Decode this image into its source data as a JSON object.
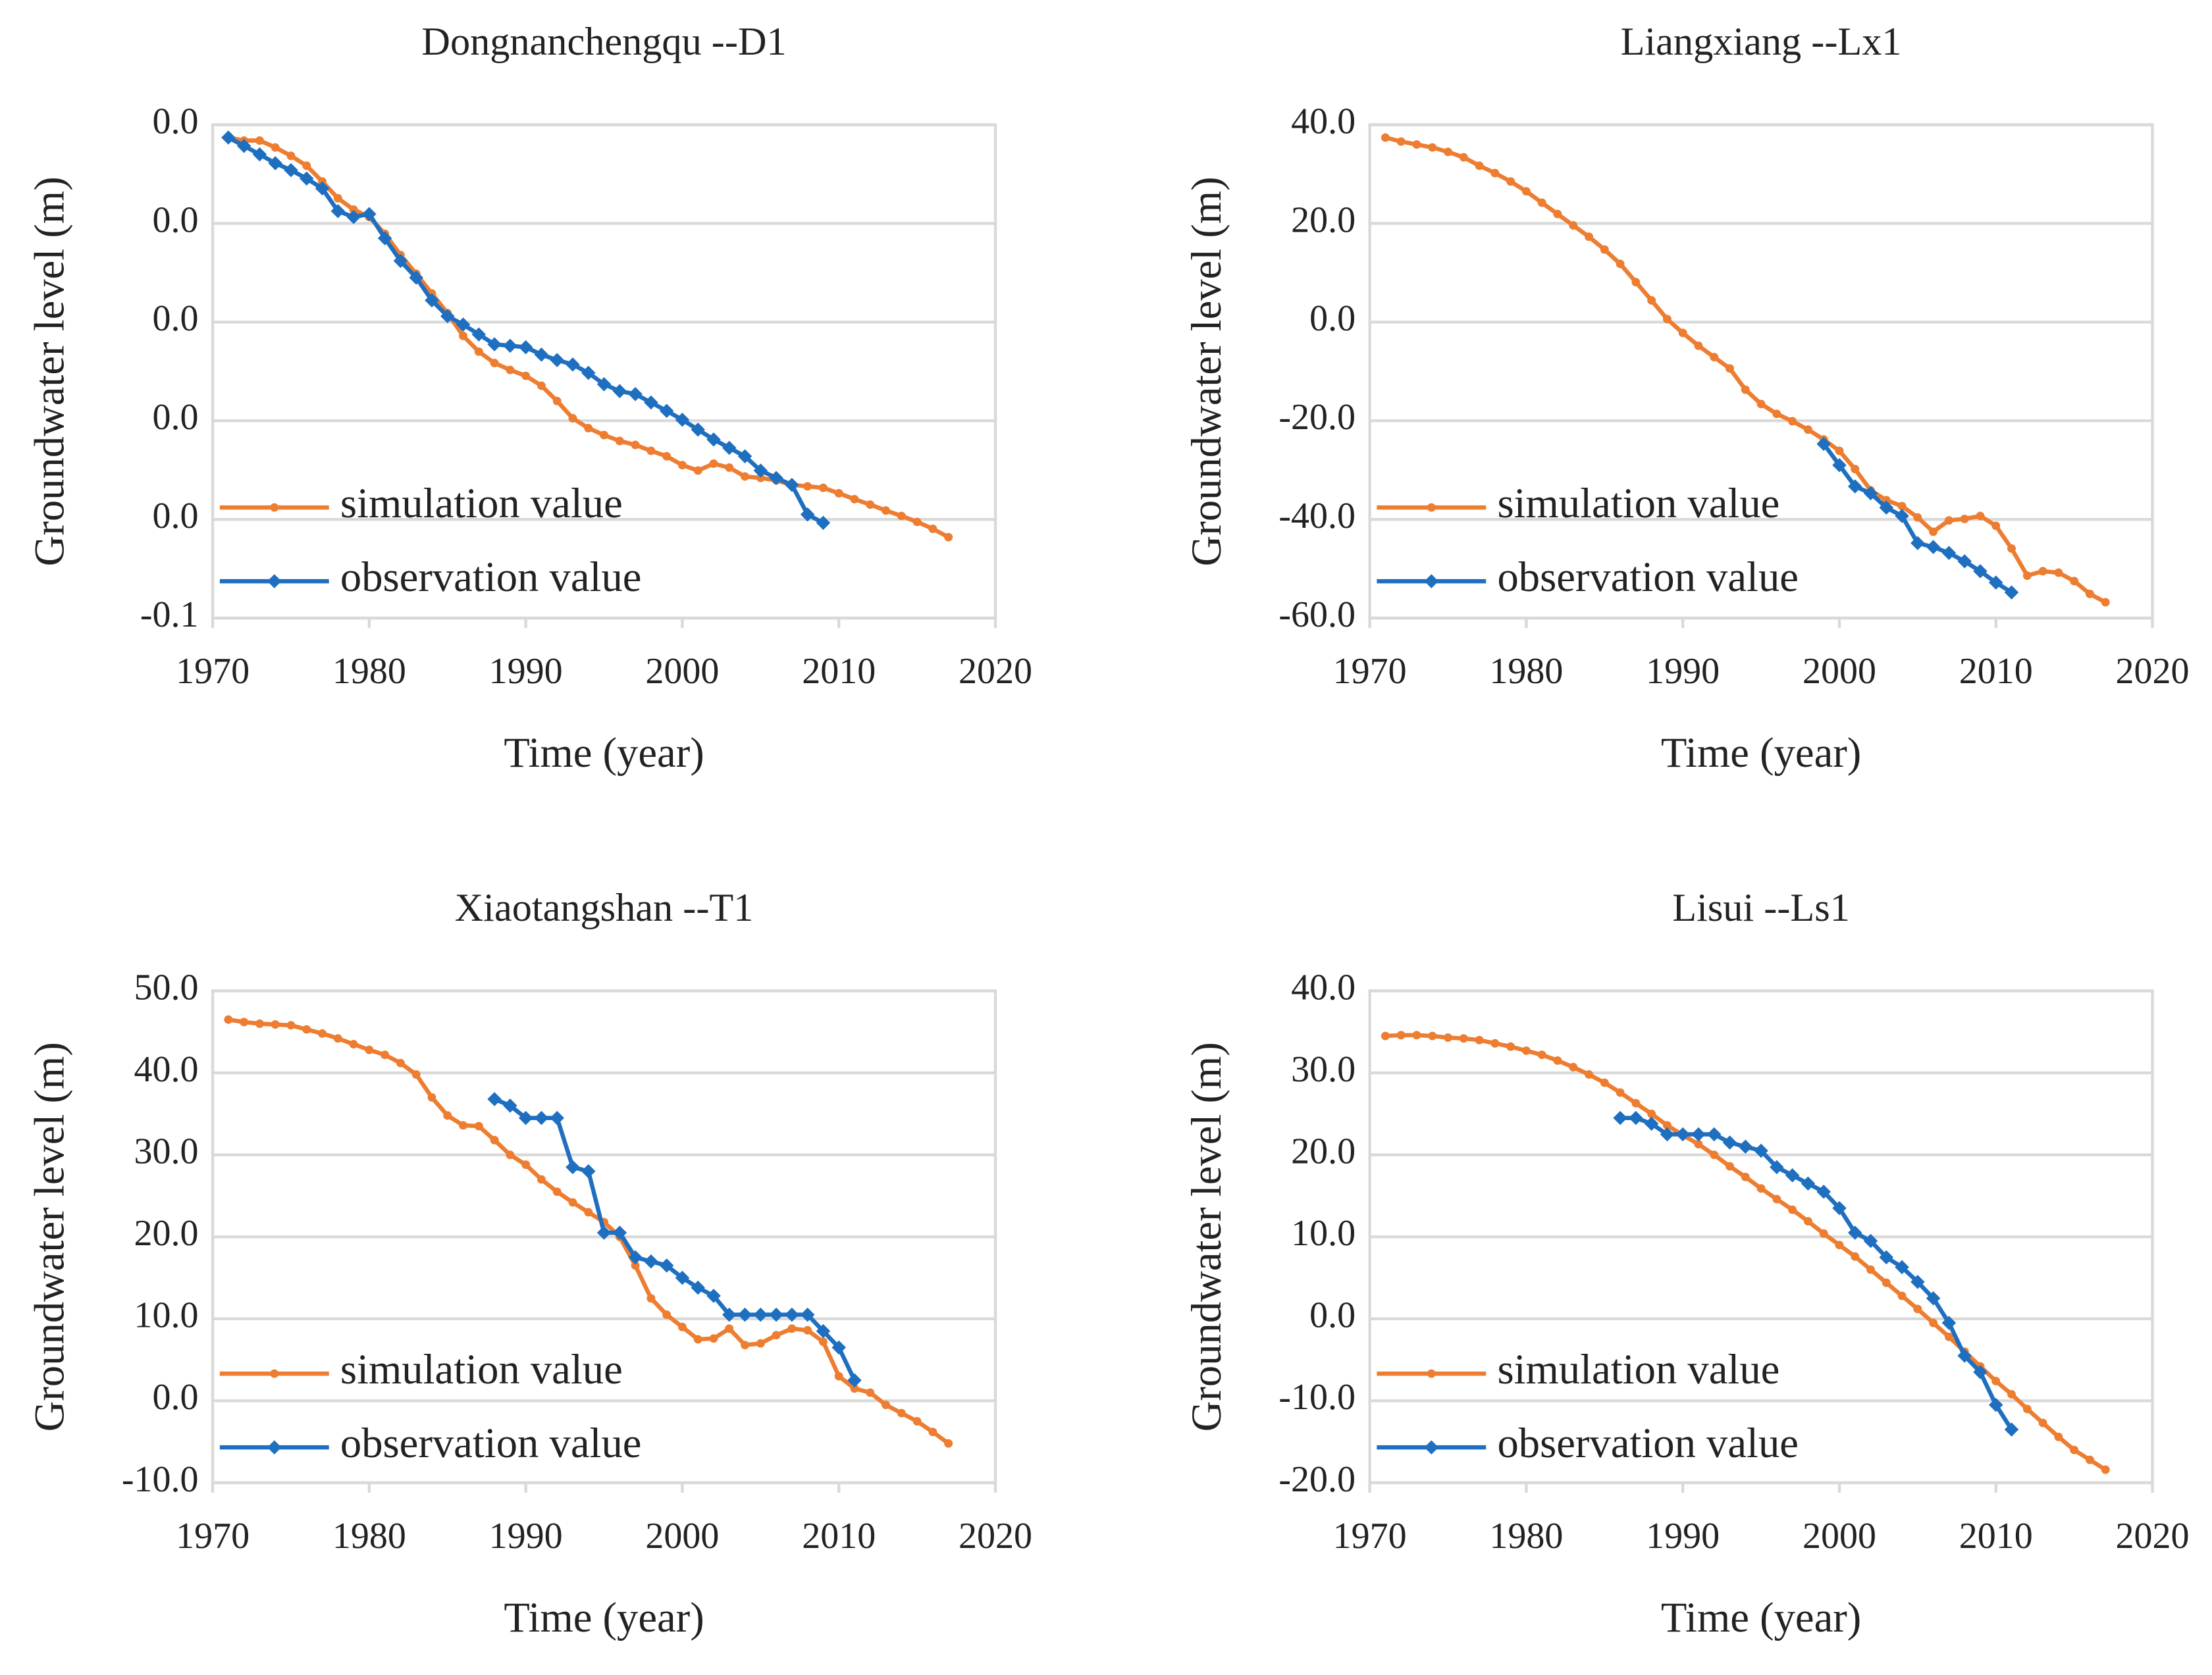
{
  "chart_data": [
    {
      "type": "line",
      "title": "Dongnanchengqu --D1",
      "x_label": "Time (year)",
      "y_label": "Groundwater level (m)",
      "x": [
        1971,
        1972,
        1973,
        1974,
        1975,
        1976,
        1977,
        1978,
        1979,
        1980,
        1981,
        1982,
        1983,
        1984,
        1985,
        1986,
        1987,
        1988,
        1989,
        1990,
        1991,
        1992,
        1993,
        1994,
        1995,
        1996,
        1997,
        1998,
        1999,
        2000,
        2001,
        2002,
        2003,
        2004,
        2005,
        2006,
        2007,
        2008,
        2009,
        2010,
        2011,
        2012,
        2013,
        2014,
        2015,
        2016,
        2017
      ],
      "xlim": [
        1970,
        2020
      ],
      "xticks": [
        1970,
        1980,
        1990,
        2000,
        2010,
        2020
      ],
      "ylim": [
        -0.1,
        0
      ],
      "yticks": [
        {
          "value": 0,
          "label": "0.0"
        },
        {
          "value": -0.02,
          "label": "0.0"
        },
        {
          "value": -0.04,
          "label": "0.0"
        },
        {
          "value": -0.06,
          "label": "0.0"
        },
        {
          "value": -0.08,
          "label": "0.0"
        },
        {
          "value": -0.1,
          "label": "-0.1"
        }
      ],
      "grid": true,
      "legend": "lower left",
      "series": [
        {
          "name": "simulation value",
          "color": "#ed7d31",
          "marker": "circle",
          "values": [
            -0.0026,
            -0.0032,
            -0.0032,
            -0.0046,
            -0.0063,
            -0.0083,
            -0.0115,
            -0.0149,
            -0.0172,
            -0.0187,
            -0.0221,
            -0.0264,
            -0.0302,
            -0.0342,
            -0.0382,
            -0.0428,
            -0.046,
            -0.0483,
            -0.0497,
            -0.0509,
            -0.0529,
            -0.056,
            -0.0595,
            -0.0615,
            -0.0629,
            -0.0641,
            -0.0649,
            -0.0661,
            -0.0672,
            -0.069,
            -0.0701,
            -0.0687,
            -0.0695,
            -0.0713,
            -0.0716,
            -0.0721,
            -0.073,
            -0.0733,
            -0.0736,
            -0.0747,
            -0.0759,
            -0.077,
            -0.0782,
            -0.0793,
            -0.0805,
            -0.0819,
            -0.0836
          ]
        },
        {
          "name": "observation value",
          "color": "#1f6fc0",
          "marker": "diamond",
          "values": [
            -0.0026,
            -0.0043,
            -0.006,
            -0.0078,
            -0.0092,
            -0.0109,
            -0.0129,
            -0.0175,
            -0.0187,
            -0.0181,
            -0.023,
            -0.0276,
            -0.031,
            -0.0356,
            -0.0388,
            -0.0405,
            -0.0425,
            -0.0445,
            -0.0448,
            -0.0451,
            -0.0466,
            -0.0477,
            -0.0486,
            -0.0503,
            -0.0526,
            -0.054,
            -0.0546,
            -0.0563,
            -0.058,
            -0.0598,
            -0.0618,
            -0.0638,
            -0.0655,
            -0.0672,
            -0.0701,
            -0.0716,
            -0.073,
            -0.079,
            -0.0807,
            null,
            null,
            null,
            null,
            null,
            null,
            null,
            null
          ]
        }
      ]
    },
    {
      "type": "line",
      "title": "Liangxiang --Lx1",
      "x_label": "Time (year)",
      "y_label": "Groundwater level (m)",
      "x": [
        1971,
        1972,
        1973,
        1974,
        1975,
        1976,
        1977,
        1978,
        1979,
        1980,
        1981,
        1982,
        1983,
        1984,
        1985,
        1986,
        1987,
        1988,
        1989,
        1990,
        1991,
        1992,
        1993,
        1994,
        1995,
        1996,
        1997,
        1998,
        1999,
        2000,
        2001,
        2002,
        2003,
        2004,
        2005,
        2006,
        2007,
        2008,
        2009,
        2010,
        2011,
        2012,
        2013,
        2014,
        2015,
        2016,
        2017
      ],
      "xlim": [
        1970,
        2020
      ],
      "xticks": [
        1970,
        1980,
        1990,
        2000,
        2010,
        2020
      ],
      "ylim": [
        -60,
        40
      ],
      "yticks": [
        {
          "value": 40,
          "label": "40.0"
        },
        {
          "value": 20,
          "label": "20.0"
        },
        {
          "value": 0,
          "label": "0.0"
        },
        {
          "value": -20,
          "label": "-20.0"
        },
        {
          "value": -40,
          "label": "-40.0"
        },
        {
          "value": -60,
          "label": "-60.0"
        }
      ],
      "grid": true,
      "legend": "lower left",
      "series": [
        {
          "name": "simulation value",
          "color": "#ed7d31",
          "marker": "circle",
          "values": [
            37.4,
            36.6,
            36,
            35.4,
            34.5,
            33.4,
            31.7,
            30.2,
            28.5,
            26.5,
            24.2,
            21.9,
            19.6,
            17.3,
            14.7,
            11.8,
            8.1,
            4.4,
            0.6,
            -2.2,
            -4.8,
            -7.1,
            -9.4,
            -13.7,
            -16.6,
            -18.6,
            -20.1,
            -21.8,
            -23.8,
            -26.1,
            -29.8,
            -34.1,
            -36.1,
            -37.3,
            -39.6,
            -42.5,
            -40.2,
            -39.9,
            -39.3,
            -41.3,
            -45.9,
            -51.4,
            -50.5,
            -50.8,
            -52.5,
            -55.1,
            -56.8
          ]
        },
        {
          "name": "observation value",
          "color": "#1f6fc0",
          "marker": "diamond",
          "values": [
            null,
            null,
            null,
            null,
            null,
            null,
            null,
            null,
            null,
            null,
            null,
            null,
            null,
            null,
            null,
            null,
            null,
            null,
            null,
            null,
            null,
            null,
            null,
            null,
            null,
            null,
            null,
            null,
            -24.7,
            -29,
            -33.3,
            -34.7,
            -37.6,
            -39.3,
            -44.8,
            -45.6,
            -46.8,
            -48.5,
            -50.5,
            -52.8,
            -54.8,
            null,
            null,
            null,
            null,
            null,
            null
          ]
        }
      ]
    },
    {
      "type": "line",
      "title": "Xiaotangshan --T1",
      "x_label": "Time (year)",
      "y_label": "Groundwater level (m)",
      "x": [
        1971,
        1972,
        1973,
        1974,
        1975,
        1976,
        1977,
        1978,
        1979,
        1980,
        1981,
        1982,
        1983,
        1984,
        1985,
        1986,
        1987,
        1988,
        1989,
        1990,
        1991,
        1992,
        1993,
        1994,
        1995,
        1996,
        1997,
        1998,
        1999,
        2000,
        2001,
        2002,
        2003,
        2004,
        2005,
        2006,
        2007,
        2008,
        2009,
        2010,
        2011,
        2012,
        2013,
        2014,
        2015,
        2016,
        2017
      ],
      "xlim": [
        1970,
        2020
      ],
      "xticks": [
        1970,
        1980,
        1990,
        2000,
        2010,
        2020
      ],
      "ylim": [
        -10,
        50
      ],
      "yticks": [
        {
          "value": 50,
          "label": "50.0"
        },
        {
          "value": 40,
          "label": "40.0"
        },
        {
          "value": 30,
          "label": "30.0"
        },
        {
          "value": 20,
          "label": "20.0"
        },
        {
          "value": 10,
          "label": "10.0"
        },
        {
          "value": 0,
          "label": "0.0"
        },
        {
          "value": -10,
          "label": "-10.0"
        }
      ],
      "grid": true,
      "legend": "lower left",
      "series": [
        {
          "name": "simulation value",
          "color": "#ed7d31",
          "marker": "circle",
          "values": [
            46.5,
            46.2,
            46,
            45.9,
            45.8,
            45.3,
            44.8,
            44.2,
            43.5,
            42.8,
            42.2,
            41.2,
            39.8,
            37,
            34.8,
            33.6,
            33.5,
            31.8,
            30,
            28.8,
            27,
            25.5,
            24.2,
            23,
            21.8,
            20,
            16.5,
            12.5,
            10.5,
            9,
            7.5,
            7.6,
            8.8,
            6.8,
            7,
            8,
            8.8,
            8.6,
            7.2,
            3,
            1.5,
            1,
            -0.5,
            -1.5,
            -2.5,
            -3.8,
            -5.2
          ]
        },
        {
          "name": "observation value",
          "color": "#1f6fc0",
          "marker": "diamond",
          "values": [
            null,
            null,
            null,
            null,
            null,
            null,
            null,
            null,
            null,
            null,
            null,
            null,
            null,
            null,
            null,
            null,
            null,
            36.8,
            36,
            34.5,
            34.5,
            34.5,
            28.5,
            28,
            20.5,
            20.5,
            17.5,
            17,
            16.5,
            15,
            13.8,
            12.8,
            10.5,
            10.5,
            10.5,
            10.5,
            10.5,
            10.5,
            8.5,
            6.5,
            2.5,
            null,
            null,
            null,
            null,
            null,
            null
          ]
        }
      ]
    },
    {
      "type": "line",
      "title": "Lisui --Ls1",
      "x_label": "Time (year)",
      "y_label": "Groundwater level (m)",
      "x": [
        1971,
        1972,
        1973,
        1974,
        1975,
        1976,
        1977,
        1978,
        1979,
        1980,
        1981,
        1982,
        1983,
        1984,
        1985,
        1986,
        1987,
        1988,
        1989,
        1990,
        1991,
        1992,
        1993,
        1994,
        1995,
        1996,
        1997,
        1998,
        1999,
        2000,
        2001,
        2002,
        2003,
        2004,
        2005,
        2006,
        2007,
        2008,
        2009,
        2010,
        2011,
        2012,
        2013,
        2014,
        2015,
        2016,
        2017
      ],
      "xlim": [
        1970,
        2020
      ],
      "xticks": [
        1970,
        1980,
        1990,
        2000,
        2010,
        2020
      ],
      "ylim": [
        -20,
        40
      ],
      "yticks": [
        {
          "value": 40,
          "label": "40.0"
        },
        {
          "value": 30,
          "label": "30.0"
        },
        {
          "value": 20,
          "label": "20.0"
        },
        {
          "value": 10,
          "label": "10.0"
        },
        {
          "value": 0,
          "label": "0.0"
        },
        {
          "value": -10,
          "label": "-10.0"
        },
        {
          "value": -20,
          "label": "-20.0"
        }
      ],
      "grid": true,
      "legend": "lower left",
      "series": [
        {
          "name": "simulation value",
          "color": "#ed7d31",
          "marker": "circle",
          "values": [
            34.5,
            34.6,
            34.6,
            34.5,
            34.3,
            34.2,
            34,
            33.6,
            33.2,
            32.7,
            32.2,
            31.5,
            30.7,
            29.8,
            28.8,
            27.6,
            26.3,
            25,
            23.6,
            22.4,
            21.3,
            20,
            18.6,
            17.3,
            15.9,
            14.6,
            13.3,
            11.9,
            10.4,
            9,
            7.6,
            6,
            4.4,
            2.8,
            1.2,
            -0.5,
            -2.2,
            -4,
            -5.8,
            -7.6,
            -9.2,
            -11,
            -12.7,
            -14.4,
            -16,
            -17.2,
            -18.4
          ]
        },
        {
          "name": "observation value",
          "color": "#1f6fc0",
          "marker": "diamond",
          "values": [
            null,
            null,
            null,
            null,
            null,
            null,
            null,
            null,
            null,
            null,
            null,
            null,
            null,
            null,
            null,
            24.5,
            24.5,
            23.8,
            22.5,
            22.5,
            22.5,
            22.5,
            21.5,
            21,
            20.5,
            18.5,
            17.5,
            16.5,
            15.5,
            13.5,
            10.5,
            9.5,
            7.5,
            6.3,
            4.5,
            2.5,
            -0.5,
            -4.5,
            -6.5,
            -10.5,
            -13.5,
            null,
            null,
            null,
            null,
            null,
            null
          ]
        }
      ]
    }
  ]
}
